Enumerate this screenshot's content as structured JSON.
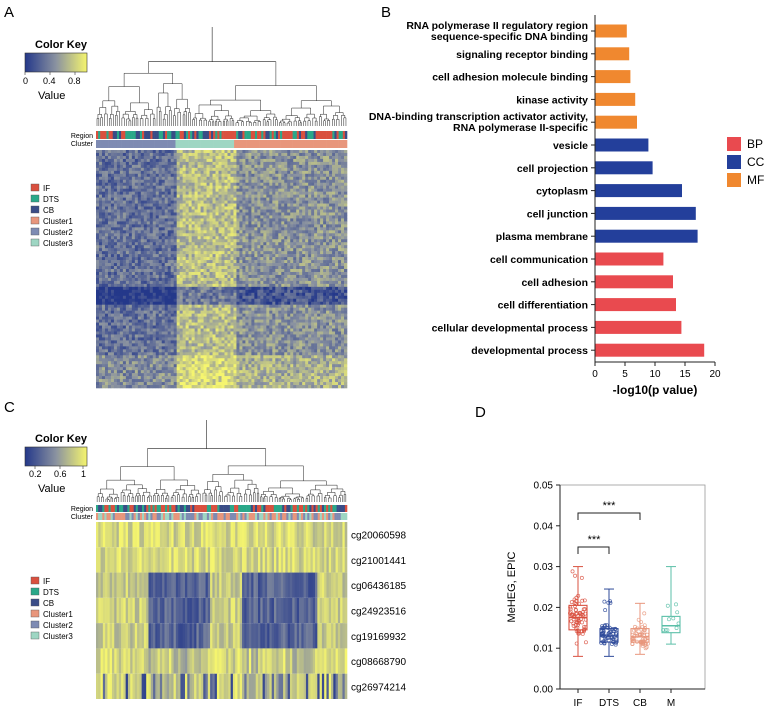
{
  "colors": {
    "IF": "#d9503f",
    "DTS": "#2aa889",
    "CB": "#3a4d87",
    "Cluster1": "#e8967c",
    "Cluster2": "#7e8bb3",
    "Cluster3": "#9ed6c3",
    "BP": "#e94a4f",
    "CC": "#233f9b",
    "MF": "#f0882f",
    "heat_low": "#24388a",
    "heat_high": "#f5f56e"
  },
  "panel_labels": {
    "a": "A",
    "b": "B",
    "c": "C",
    "d": "D"
  },
  "panel_a": {
    "color_key": {
      "title": "Color Key",
      "ticks": [
        "0",
        "0.4",
        "0.8"
      ],
      "value_label": "Value"
    },
    "row_labels": {
      "region": "Region",
      "cluster": "Cluster"
    },
    "legend": [
      "IF",
      "DTS",
      "CB",
      "Cluster1",
      "Cluster2",
      "Cluster3"
    ]
  },
  "panel_c": {
    "color_key": {
      "title": "Color Key",
      "ticks": [
        "0.2",
        "0.6",
        "1"
      ],
      "value_label": "Value"
    },
    "row_labels": {
      "region": "Region",
      "cluster": "Cluster"
    },
    "legend": [
      "IF",
      "DTS",
      "CB",
      "Cluster1",
      "Cluster2",
      "Cluster3"
    ],
    "genes": [
      "cg20060598",
      "cg21001441",
      "cg06436185",
      "cg24923516",
      "cg19169932",
      "cg08668790",
      "cg26974214"
    ]
  },
  "chart_data": [
    {
      "type": "bar",
      "orientation": "horizontal",
      "xlabel": "-log10(p value)",
      "xlim": [
        0,
        20
      ],
      "xticks": [
        "0",
        "5",
        "10",
        "15",
        "20"
      ],
      "legend": [
        "BP",
        "CC",
        "MF"
      ],
      "categories": [
        "RNA polymerase II regulatory region sequence-specific DNA binding",
        "signaling receptor binding",
        "cell adhesion molecule binding",
        "kinase activity",
        "DNA-binding transcription activator activity, RNA polymerase II-specific",
        "vesicle",
        "cell projection",
        "cytoplasm",
        "cell junction",
        "plasma membrane",
        "cell communication",
        "cell adhesion",
        "cell differentiation",
        "cellular developmental process",
        "developmental process"
      ],
      "label_lines": [
        [
          "RNA polymerase II regulatory region",
          "sequence-specific DNA binding"
        ],
        [
          "signaling receptor binding"
        ],
        [
          "cell adhesion molecule binding"
        ],
        [
          "kinase activity"
        ],
        [
          "DNA-binding transcription activator activity,",
          "RNA polymerase II-specific"
        ],
        [
          "vesicle"
        ],
        [
          "cell projection"
        ],
        [
          "cytoplasm"
        ],
        [
          "cell junction"
        ],
        [
          "plasma membrane"
        ],
        [
          "cell communication"
        ],
        [
          "cell adhesion"
        ],
        [
          "cell differentiation"
        ],
        [
          "cellular developmental process"
        ],
        [
          "developmental process"
        ]
      ],
      "values": [
        5.3,
        5.7,
        5.9,
        6.7,
        7.0,
        8.9,
        9.6,
        14.5,
        16.8,
        17.1,
        11.4,
        13.0,
        13.5,
        14.4,
        18.2
      ],
      "groups": [
        "MF",
        "MF",
        "MF",
        "MF",
        "MF",
        "CC",
        "CC",
        "CC",
        "CC",
        "CC",
        "BP",
        "BP",
        "BP",
        "BP",
        "BP"
      ]
    },
    {
      "type": "box",
      "ylabel": "MeHEG, EPIC",
      "ylim": [
        0,
        0.05
      ],
      "yticks": [
        "0.00",
        "0.01",
        "0.02",
        "0.03",
        "0.04",
        "0.05"
      ],
      "categories": [
        "IF",
        "DTS",
        "CB",
        "M"
      ],
      "series_colors": [
        "#d9503f",
        "#2e4a9a",
        "#e8967c",
        "#5bbfa8"
      ],
      "boxes": [
        {
          "name": "IF",
          "min": 0.008,
          "q1": 0.0145,
          "median": 0.0175,
          "q3": 0.0205,
          "max": 0.03
        },
        {
          "name": "DTS",
          "min": 0.008,
          "q1": 0.0115,
          "median": 0.013,
          "q3": 0.0148,
          "max": 0.0245
        },
        {
          "name": "CB",
          "min": 0.0085,
          "q1": 0.0115,
          "median": 0.0128,
          "q3": 0.0148,
          "max": 0.021
        },
        {
          "name": "M",
          "min": 0.011,
          "q1": 0.0138,
          "median": 0.0155,
          "q3": 0.0178,
          "max": 0.03
        }
      ],
      "annotations": [
        {
          "text": "***",
          "between": [
            "IF",
            "CB"
          ]
        },
        {
          "text": "***",
          "between": [
            "IF",
            "DTS"
          ]
        }
      ]
    }
  ]
}
